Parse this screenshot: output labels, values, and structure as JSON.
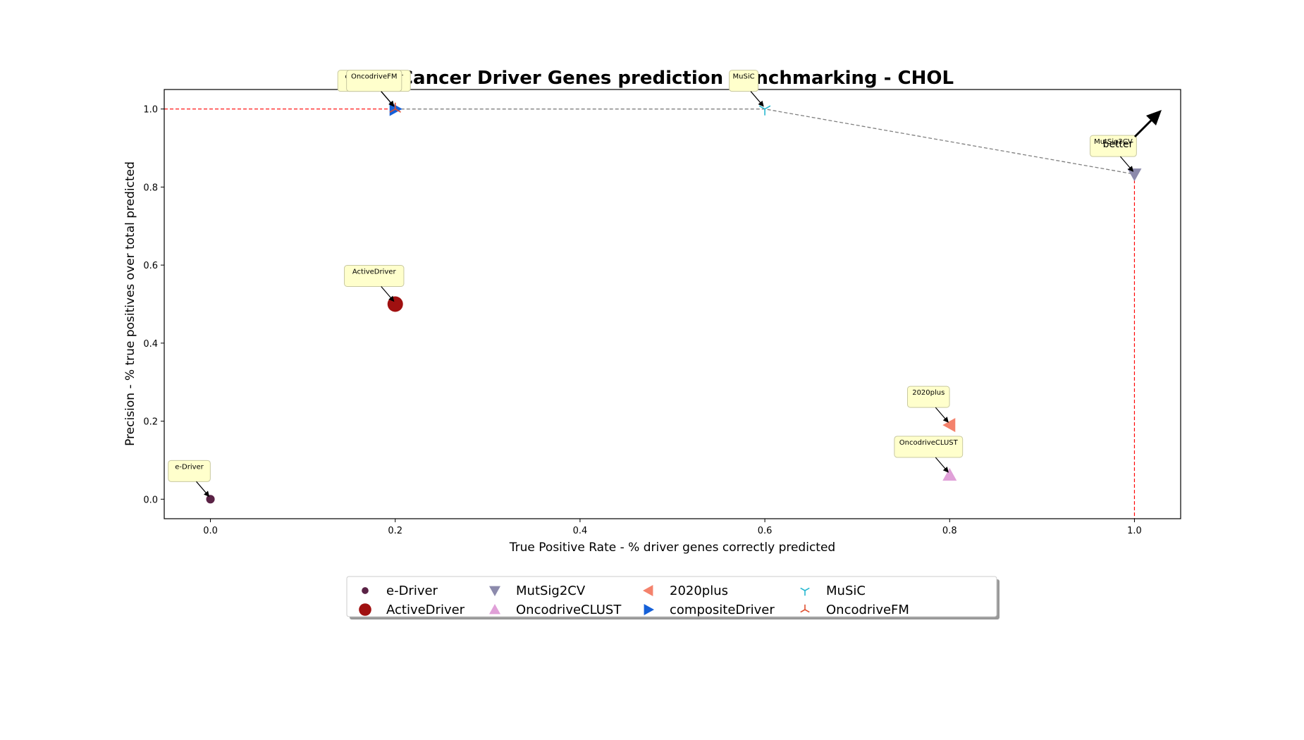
{
  "chart_data": {
    "type": "scatter",
    "title": "Cancer Driver Genes prediction benchmarking - CHOL",
    "xlabel": "True Positive Rate - % driver genes correctly predicted",
    "ylabel": "Precision - % true positives over total predicted",
    "xlim": [
      -0.05,
      1.05
    ],
    "ylim": [
      -0.05,
      1.05
    ],
    "xticks": [
      0.0,
      0.2,
      0.4,
      0.6,
      0.8,
      1.0
    ],
    "yticks": [
      0.0,
      0.2,
      0.4,
      0.6,
      0.8,
      1.0
    ],
    "tick_labels": [
      "0.0",
      "0.2",
      "0.4",
      "0.6",
      "0.8",
      "1.0"
    ],
    "grid": false,
    "legend_position": "bottom-center",
    "better_label": "better",
    "series": [
      {
        "name": "e-Driver",
        "x": 0.0,
        "y": 0.0,
        "marker": "dot",
        "color": "#5a2245"
      },
      {
        "name": "ActiveDriver",
        "x": 0.2,
        "y": 0.5,
        "marker": "circle",
        "color": "#a01010"
      },
      {
        "name": "MutSig2CV",
        "x": 1.0,
        "y": 0.833,
        "marker": "triangle-down",
        "color": "#8c8aac"
      },
      {
        "name": "OncodriveCLUST",
        "x": 0.8,
        "y": 0.062,
        "marker": "triangle-up",
        "color": "#e0a0d8"
      },
      {
        "name": "2020plus",
        "x": 0.8,
        "y": 0.19,
        "marker": "triangle-left",
        "color": "#f4826c"
      },
      {
        "name": "compositeDriver",
        "x": 0.2,
        "y": 1.0,
        "marker": "triangle-right",
        "color": "#1560d8"
      },
      {
        "name": "MuSiC",
        "x": 0.6,
        "y": 1.0,
        "marker": "tri-down",
        "color": "#27b8d0"
      },
      {
        "name": "OncodriveFM",
        "x": 0.2,
        "y": 1.0,
        "marker": "tri-up",
        "color": "#e05030"
      }
    ],
    "annotations": [
      {
        "text": "e-Driver"
      },
      {
        "text": "ActiveDriver"
      },
      {
        "text": "MutSig2CV"
      },
      {
        "text": "OncodriveCLUST"
      },
      {
        "text": "2020plus"
      },
      {
        "text": "compositeDriver"
      },
      {
        "text": "MuSiC"
      },
      {
        "text": "OncodriveFM"
      }
    ],
    "pareto_front": [
      [
        0.2,
        1.0
      ],
      [
        0.6,
        1.0
      ],
      [
        1.0,
        0.833
      ]
    ]
  },
  "colors": {
    "annotation_box": "#ffffcc",
    "annotation_border": "#c8c8a0",
    "pareto_line": "#808080",
    "reference_line": "#ff0000"
  }
}
